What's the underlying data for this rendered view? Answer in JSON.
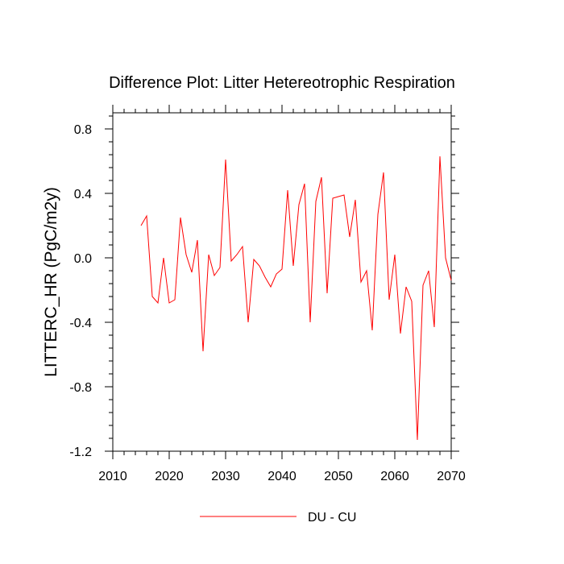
{
  "chart_data": {
    "type": "line",
    "title": "Difference Plot: Litter Hetereotrophic Respiration",
    "xlabel": "",
    "ylabel": "LITTERC_HR  (PgC/m2y)",
    "xlim": [
      2010,
      2070
    ],
    "ylim": [
      -1.2,
      0.9
    ],
    "x_ticks": [
      2010,
      2020,
      2030,
      2040,
      2050,
      2060,
      2070
    ],
    "x_tick_labels": [
      "2010",
      "2020",
      "2030",
      "2040",
      "2050",
      "2060",
      "2070"
    ],
    "y_ticks": [
      -1.2,
      -0.8,
      -0.4,
      0.0,
      0.4,
      0.8
    ],
    "y_tick_labels": [
      "-1.2",
      "-0.8",
      "-0.4",
      "0.0",
      "0.4",
      "0.8"
    ],
    "series": [
      {
        "name": "DU - CU",
        "color": "#ff0000",
        "x": [
          2015,
          2016,
          2017,
          2018,
          2019,
          2020,
          2021,
          2022,
          2023,
          2024,
          2025,
          2026,
          2027,
          2028,
          2029,
          2030,
          2031,
          2032,
          2033,
          2034,
          2035,
          2036,
          2037,
          2038,
          2039,
          2040,
          2041,
          2042,
          2043,
          2044,
          2045,
          2046,
          2047,
          2048,
          2049,
          2050,
          2051,
          2052,
          2053,
          2054,
          2055,
          2056,
          2057,
          2058,
          2059,
          2060,
          2061,
          2062,
          2063,
          2064,
          2065,
          2066,
          2067,
          2068,
          2069,
          2070
        ],
        "values": [
          0.2,
          0.26,
          -0.24,
          -0.28,
          0.0,
          -0.28,
          -0.26,
          0.25,
          0.02,
          -0.09,
          0.11,
          -0.58,
          0.02,
          -0.11,
          -0.06,
          0.61,
          -0.02,
          0.02,
          0.07,
          -0.4,
          -0.01,
          -0.05,
          -0.12,
          -0.18,
          -0.1,
          -0.07,
          0.42,
          -0.05,
          0.33,
          0.46,
          -0.4,
          0.35,
          0.5,
          -0.22,
          0.37,
          0.38,
          0.39,
          0.13,
          0.36,
          -0.15,
          -0.08,
          -0.45,
          0.27,
          0.53,
          -0.26,
          0.02,
          -0.47,
          -0.18,
          -0.27,
          -1.13,
          -0.17,
          -0.08,
          -0.43,
          0.63,
          0.0,
          -0.14
        ]
      }
    ],
    "legend": {
      "position": "bottom-center"
    },
    "grid": false
  }
}
